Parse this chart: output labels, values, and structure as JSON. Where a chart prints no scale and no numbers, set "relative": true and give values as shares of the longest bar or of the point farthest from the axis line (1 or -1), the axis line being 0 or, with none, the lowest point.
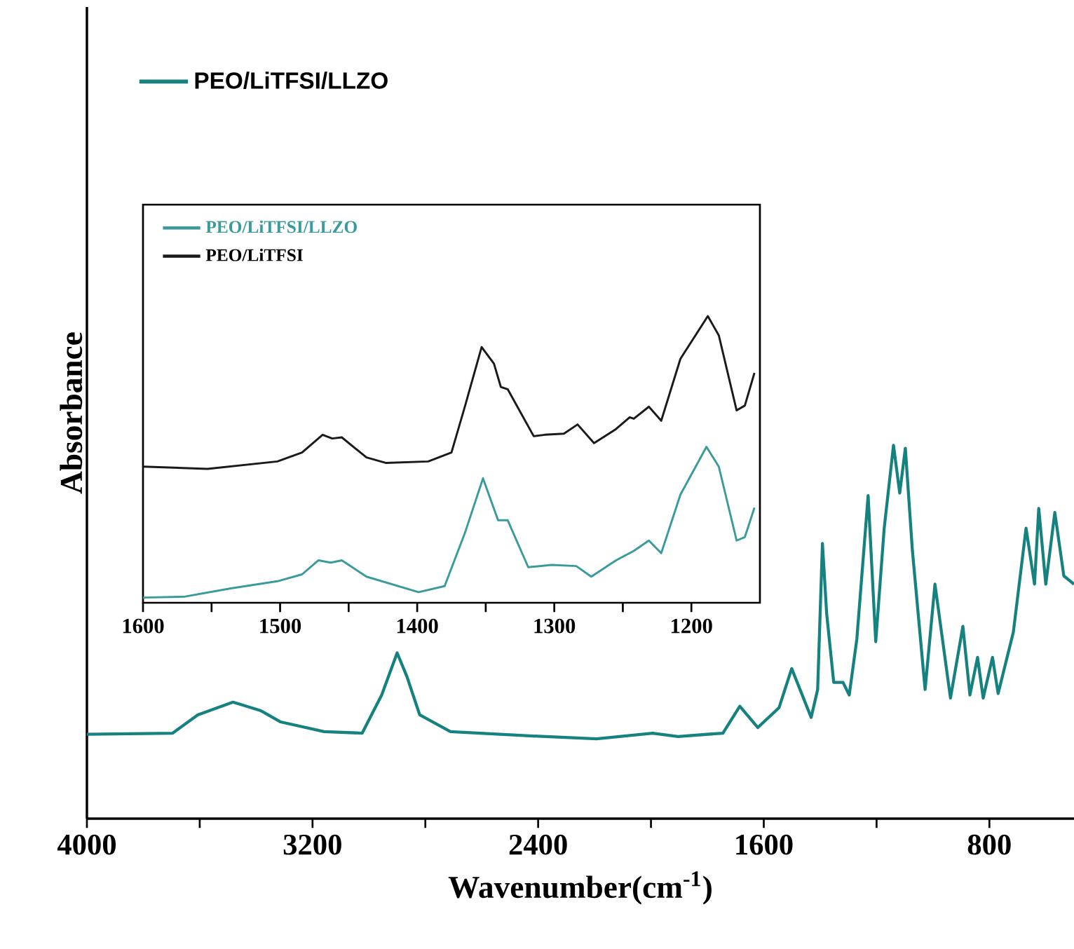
{
  "chart_data": [
    {
      "type": "line",
      "xlabel": "Wavenumber(cm$^{-1}$)",
      "ylabel": "Absorbance",
      "relative": true,
      "xlim": [
        4000,
        500
      ],
      "xticks": [
        4000,
        {
          "value": 3600,
          "label": null
        },
        3200,
        {
          "value": 2800,
          "label": null
        },
        2400,
        {
          "value": 2000,
          "label": null
        },
        1600,
        {
          "value": 1200,
          "label": null
        },
        800
      ],
      "legend": "top left",
      "series": [
        {
          "name": "PEO/LiTFSI/LLZO",
          "color": "#16827f",
          "x": [
            4000,
            3696,
            3607,
            3482,
            3383,
            3313,
            3159,
            3024,
            2955,
            2900,
            2865,
            2820,
            2711,
            2442,
            2193,
            1994,
            1904,
            1745,
            1685,
            1621,
            1546,
            1501,
            1432,
            1409,
            1392,
            1377,
            1352,
            1319,
            1297,
            1270,
            1230,
            1203,
            1173,
            1140,
            1118,
            1098,
            1073,
            1028,
            993,
            938,
            894,
            869,
            842,
            822,
            789,
            769,
            715,
            670,
            640,
            625,
            600,
            568,
            536,
            500
          ],
          "values": [
            0.226,
            0.229,
            0.278,
            0.312,
            0.289,
            0.259,
            0.233,
            0.229,
            0.331,
            0.444,
            0.38,
            0.278,
            0.233,
            0.222,
            0.214,
            0.229,
            0.22,
            0.229,
            0.301,
            0.244,
            0.297,
            0.402,
            0.271,
            0.346,
            0.737,
            0.549,
            0.365,
            0.365,
            0.331,
            0.481,
            0.865,
            0.474,
            0.778,
            1.0,
            0.872,
            0.992,
            0.718,
            0.346,
            0.628,
            0.323,
            0.515,
            0.331,
            0.432,
            0.323,
            0.432,
            0.335,
            0.5,
            0.778,
            0.628,
            0.831,
            0.628,
            0.82,
            0.65,
            0.628
          ]
        }
      ]
    },
    {
      "type": "line",
      "relative": true,
      "xlim": [
        1600,
        1150
      ],
      "xticks": [
        1600,
        {
          "value": 1550,
          "label": null
        },
        1500,
        {
          "value": 1450,
          "label": null
        },
        1400,
        {
          "value": 1350,
          "label": null
        },
        1300,
        {
          "value": 1250,
          "label": null
        },
        1200
      ],
      "legend": "top left",
      "series": [
        {
          "name": "PEO/LiTFSI/LLZO",
          "color": "#3a9c9a",
          "x": [
            1600,
            1570,
            1536,
            1502,
            1484,
            1472,
            1463,
            1455,
            1437,
            1399,
            1380,
            1365,
            1352,
            1341,
            1334,
            1319,
            1302,
            1284,
            1273,
            1255,
            1242,
            1231,
            1222,
            1208,
            1189,
            1180,
            1167,
            1161,
            1154
          ],
          "values": [
            0.018,
            0.021,
            0.05,
            0.075,
            0.099,
            0.148,
            0.14,
            0.148,
            0.091,
            0.037,
            0.058,
            0.246,
            0.434,
            0.288,
            0.288,
            0.124,
            0.132,
            0.128,
            0.091,
            0.148,
            0.181,
            0.217,
            0.173,
            0.377,
            0.544,
            0.475,
            0.217,
            0.229,
            0.332
          ]
        },
        {
          "name": "PEO/LiTFSI",
          "color": "#1a1a1a",
          "x": [
            1600,
            1553,
            1502,
            1484,
            1469,
            1462,
            1455,
            1437,
            1423,
            1392,
            1375,
            1365,
            1353,
            1344,
            1339,
            1334,
            1315,
            1307,
            1293,
            1283,
            1271,
            1255,
            1245,
            1242,
            1231,
            1222,
            1208,
            1188,
            1180,
            1167,
            1161,
            1154
          ],
          "values": [
            0.475,
            0.467,
            0.493,
            0.524,
            0.586,
            0.573,
            0.577,
            0.507,
            0.488,
            0.493,
            0.524,
            0.688,
            0.892,
            0.834,
            0.753,
            0.745,
            0.581,
            0.586,
            0.59,
            0.622,
            0.557,
            0.606,
            0.647,
            0.642,
            0.684,
            0.635,
            0.851,
            1.0,
            0.933,
            0.671,
            0.688,
            0.802
          ]
        }
      ]
    }
  ]
}
